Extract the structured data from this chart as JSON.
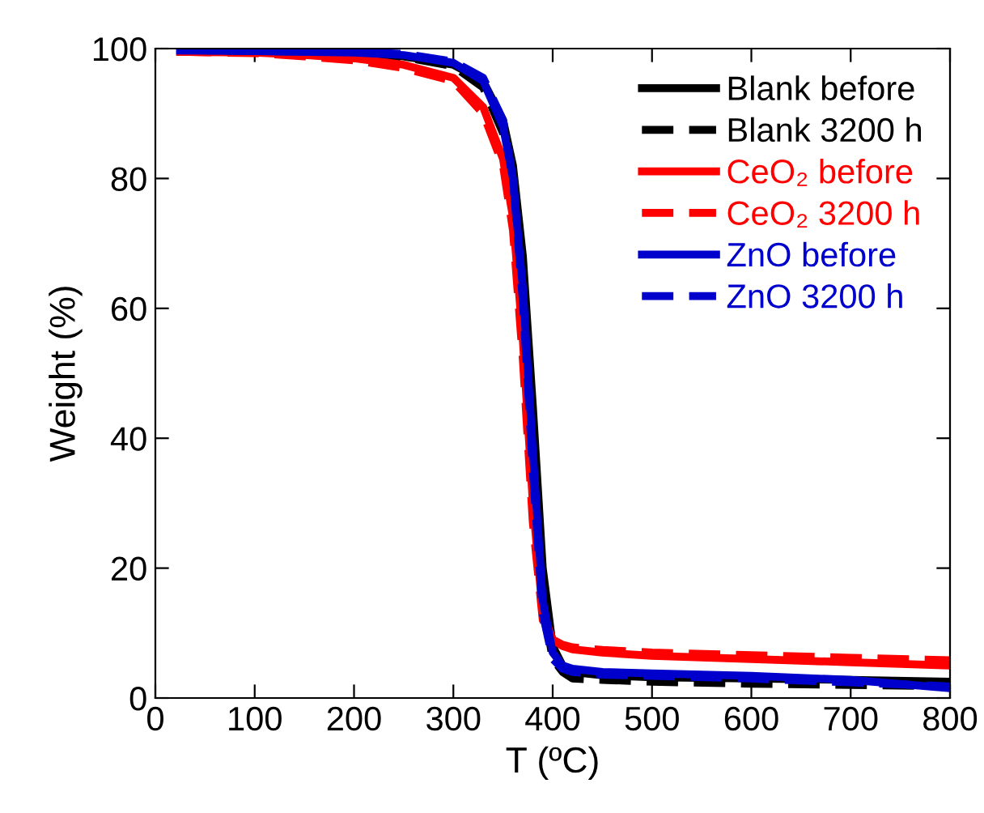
{
  "chart_data": {
    "type": "line",
    "xlabel": "T (ºC)",
    "ylabel": "Weight (%)",
    "xlim": [
      0,
      800
    ],
    "xticks": [
      0,
      100,
      200,
      300,
      400,
      500,
      600,
      700,
      800
    ],
    "ylim": [
      0,
      100
    ],
    "yticks": [
      0,
      20,
      40,
      60,
      80,
      100
    ],
    "grid": false,
    "legend": "top right",
    "marker": "none",
    "series": [
      {
        "name": "Blank before",
        "color": "#000000",
        "line_style": "solid",
        "x": [
          25,
          100,
          200,
          250,
          300,
          330,
          350,
          360,
          370,
          380,
          390,
          400,
          410,
          420,
          450,
          500,
          600,
          700,
          800
        ],
        "values": [
          99.5,
          99.5,
          99.2,
          98.8,
          97.5,
          95,
          89,
          82,
          68,
          45,
          20,
          8,
          5,
          4,
          3.5,
          3.2,
          3,
          2.8,
          2.5
        ]
      },
      {
        "name": "Blank 3200 h",
        "color": "#000000",
        "line_style": "dashed",
        "x": [
          25,
          100,
          200,
          250,
          300,
          330,
          350,
          360,
          370,
          380,
          390,
          400,
          410,
          420,
          450,
          500,
          600,
          700,
          800
        ],
        "values": [
          99.6,
          99.5,
          99.2,
          98.7,
          97.3,
          94,
          87,
          79,
          62,
          38,
          15,
          6,
          4,
          3,
          2.8,
          2.5,
          2.2,
          2,
          1.8
        ]
      },
      {
        "name": "CeO₂ before",
        "color": "#ff0000",
        "line_style": "solid",
        "x": [
          25,
          100,
          150,
          200,
          250,
          300,
          330,
          350,
          360,
          370,
          380,
          390,
          400,
          410,
          420,
          450,
          500,
          600,
          700,
          800
        ],
        "values": [
          99.5,
          99.4,
          99,
          98.5,
          97.5,
          95.5,
          91,
          83,
          74,
          55,
          30,
          13,
          9,
          8,
          7.5,
          7,
          6.5,
          6,
          5.5,
          5
        ]
      },
      {
        "name": "CeO₂ 3200 h",
        "color": "#ff0000",
        "line_style": "dashed",
        "x": [
          25,
          100,
          150,
          200,
          250,
          300,
          330,
          350,
          360,
          370,
          380,
          390,
          400,
          410,
          420,
          450,
          500,
          600,
          700,
          800
        ],
        "values": [
          99.5,
          99.3,
          98.8,
          98.2,
          97,
          95,
          90,
          82,
          72,
          52,
          27,
          12,
          9,
          8.2,
          7.8,
          7.4,
          7,
          6.6,
          6.2,
          5.8
        ]
      },
      {
        "name": "ZnO before",
        "color": "#0000cc",
        "line_style": "solid",
        "x": [
          25,
          100,
          200,
          250,
          300,
          330,
          350,
          360,
          370,
          380,
          390,
          400,
          410,
          420,
          450,
          500,
          600,
          700,
          800
        ],
        "values": [
          99.7,
          99.6,
          99.4,
          99,
          97.8,
          95,
          88,
          80,
          63,
          38,
          15,
          7,
          5,
          4.5,
          4,
          3.8,
          3.4,
          2.8,
          1.5
        ]
      },
      {
        "name": "ZnO 3200 h",
        "color": "#0000cc",
        "line_style": "dashed",
        "x": [
          25,
          100,
          200,
          250,
          300,
          330,
          350,
          360,
          370,
          380,
          390,
          400,
          410,
          420,
          450,
          500,
          600,
          700,
          800
        ],
        "values": [
          99.8,
          99.6,
          99.5,
          99.2,
          98,
          95.5,
          89,
          80,
          61,
          35,
          13,
          6,
          4.5,
          4,
          3.6,
          3.4,
          3,
          2.4,
          1.8
        ]
      }
    ]
  }
}
